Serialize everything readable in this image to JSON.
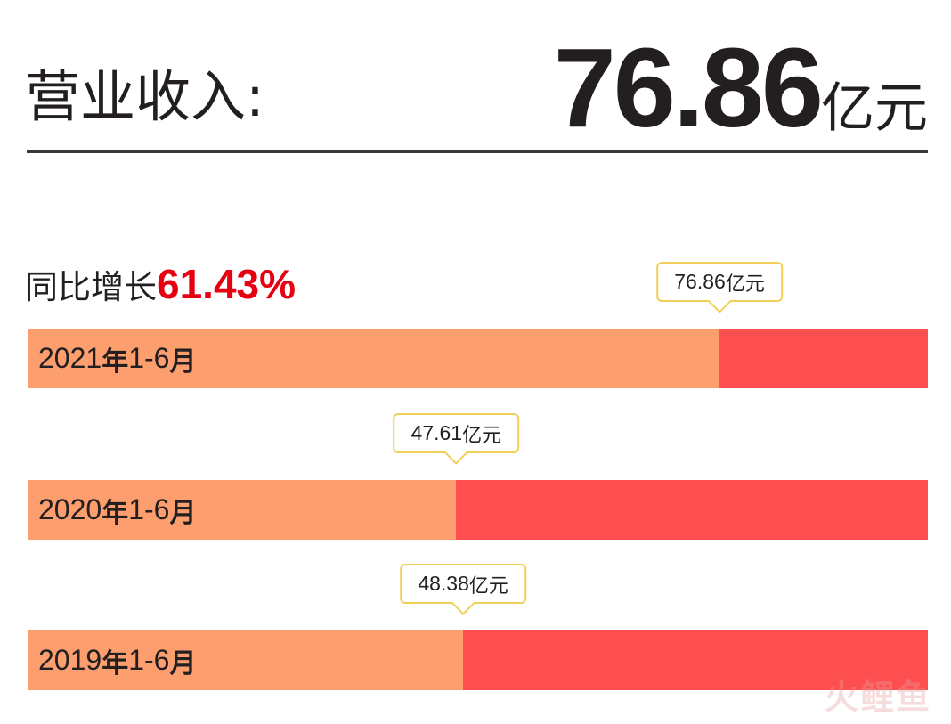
{
  "header": {
    "label": "营业收入:",
    "value": "76.86",
    "unit": "亿元"
  },
  "growth": {
    "label": "同比增长",
    "value": "61.43%"
  },
  "chart_data": {
    "type": "bar",
    "orientation": "horizontal",
    "categories": [
      "2021年1-6月",
      "2020年1-6月",
      "2019年1-6月"
    ],
    "values": [
      76.86,
      47.61,
      48.38
    ],
    "value_labels": [
      "76.86",
      "47.61",
      "48.38"
    ],
    "unit": "亿元",
    "xlim": [
      0,
      100
    ],
    "grid": false
  },
  "colors": {
    "bar_fill": "#fc9e6e",
    "bar_track": "#fd4f4f",
    "growth_value": "#e60012",
    "callout_border": "#f1cf55"
  },
  "watermark": "火鲤鱼"
}
